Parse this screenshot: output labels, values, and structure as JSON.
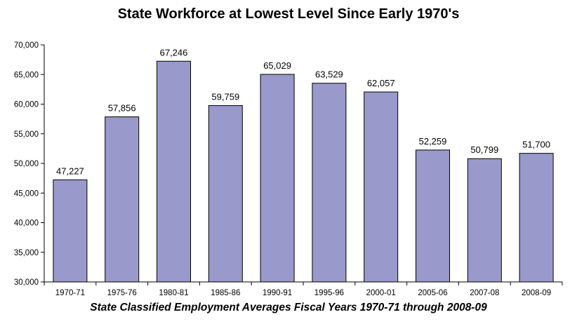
{
  "chart_data": {
    "type": "bar",
    "title": "State Workforce at Lowest Level Since Early 1970's",
    "caption": "State Classified Employment Averages Fiscal Years 1970-71 through 2008-09",
    "xlabel": "",
    "ylabel": "",
    "categories": [
      "1970-71",
      "1975-76",
      "1980-81",
      "1985-86",
      "1990-91",
      "1995-96",
      "2000-01",
      "2005-06",
      "2007-08",
      "2008-09"
    ],
    "values": [
      47227,
      57856,
      67246,
      59759,
      65029,
      63529,
      62057,
      52259,
      50799,
      51700
    ],
    "value_labels": [
      "47,227",
      "57,856",
      "67,246",
      "59,759",
      "65,029",
      "63,529",
      "62,057",
      "52,259",
      "50,799",
      "51,700"
    ],
    "ylim": [
      30000,
      70000
    ],
    "yticks": [
      "30,000",
      "35,000",
      "40,000",
      "45,000",
      "50,000",
      "55,000",
      "60,000",
      "65,000",
      "70,000"
    ],
    "bar_color": "#9999cc",
    "bar_edge_color": "#000000",
    "grid": false,
    "legend": "none"
  }
}
